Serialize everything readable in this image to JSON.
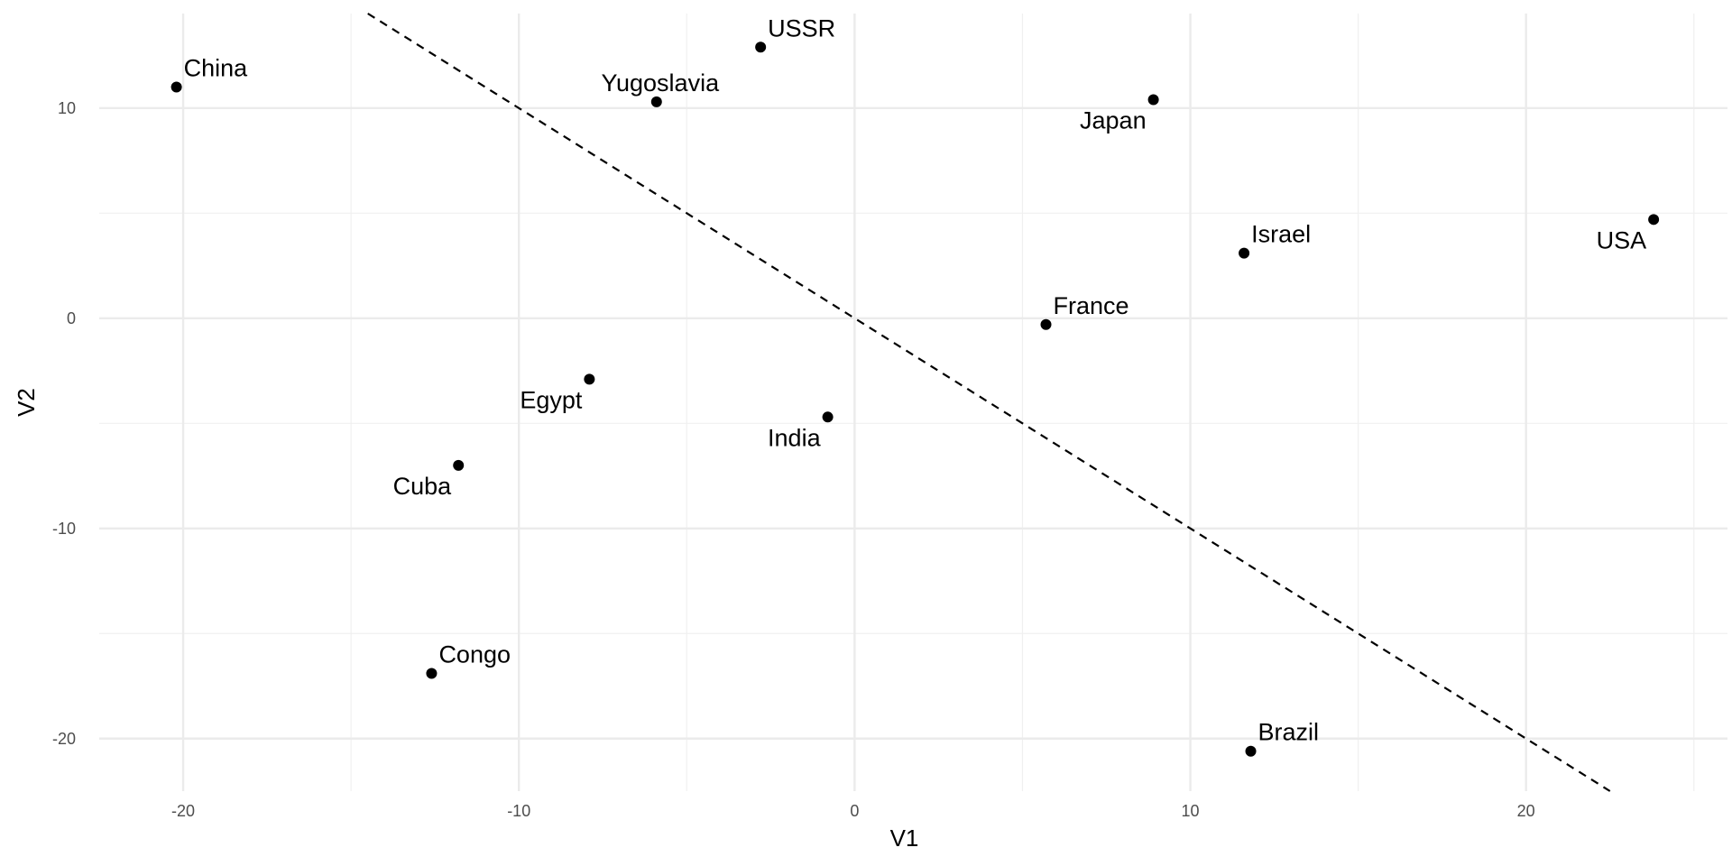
{
  "chart_data": {
    "type": "scatter",
    "title": "",
    "xlabel": "V1",
    "ylabel": "V2",
    "xlim": [
      -22.5,
      26
    ],
    "ylim": [
      -22.5,
      14.5
    ],
    "x_major_ticks": [
      -20,
      -10,
      0,
      10,
      20
    ],
    "x_minor_ticks": [
      -15,
      -5,
      5,
      15,
      25
    ],
    "y_major_ticks": [
      -20,
      -10,
      0,
      10
    ],
    "y_minor_ticks": [
      -15,
      -5,
      5
    ],
    "x_tick_labels": [
      "-20",
      "-10",
      "0",
      "10",
      "20"
    ],
    "y_tick_labels": [
      "-20",
      "-10",
      "0",
      "10"
    ],
    "grid": true,
    "points": [
      {
        "label": "China",
        "x": -20.2,
        "y": 11.0,
        "label_side": "right-above"
      },
      {
        "label": "USSR",
        "x": -2.8,
        "y": 12.9,
        "label_side": "right-above"
      },
      {
        "label": "Yugoslavia",
        "x": -5.9,
        "y": 10.3,
        "label_side": "left-above"
      },
      {
        "label": "Japan",
        "x": 8.9,
        "y": 10.4,
        "label_side": "left-below"
      },
      {
        "label": "Israel",
        "x": 11.6,
        "y": 3.1,
        "label_side": "right-above"
      },
      {
        "label": "USA",
        "x": 23.8,
        "y": 4.7,
        "label_side": "left-below"
      },
      {
        "label": "France",
        "x": 5.7,
        "y": -0.3,
        "label_side": "right-above"
      },
      {
        "label": "Egypt",
        "x": -7.9,
        "y": -2.9,
        "label_side": "left-below"
      },
      {
        "label": "India",
        "x": -0.8,
        "y": -4.7,
        "label_side": "left-below"
      },
      {
        "label": "Cuba",
        "x": -11.8,
        "y": -7.0,
        "label_side": "left-below"
      },
      {
        "label": "Congo",
        "x": -12.6,
        "y": -16.9,
        "label_side": "right-above"
      },
      {
        "label": "Brazil",
        "x": 11.8,
        "y": -20.6,
        "label_side": "right-above"
      }
    ],
    "reference_line": {
      "style": "dashed",
      "slope": -1,
      "intercept": 0
    }
  }
}
